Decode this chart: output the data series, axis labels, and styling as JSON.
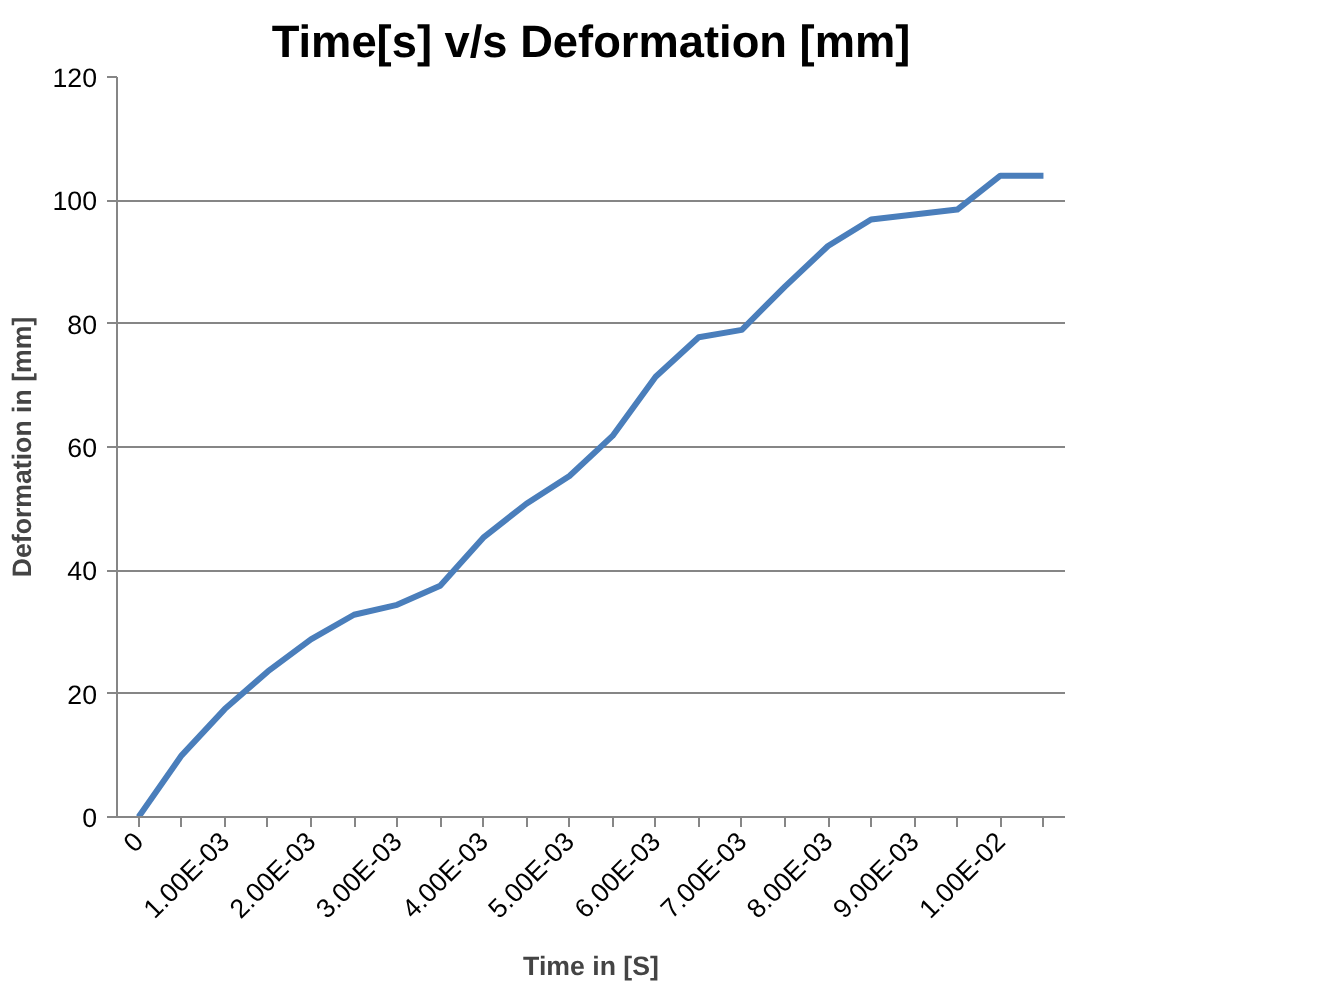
{
  "chart_data": {
    "type": "line",
    "title": "Time[s] v/s Deformation [mm]",
    "xlabel": "Time in [S]",
    "ylabel": "Deformation in [mm]",
    "categories": [
      "0",
      null,
      "1.00E-03",
      null,
      "2.00E-03",
      null,
      "3.00E-03",
      null,
      "4.00E-03",
      null,
      "5.00E-03",
      null,
      "6.00E-03",
      null,
      "7.00E-03",
      null,
      "8.00E-03",
      null,
      "9.00E-03",
      null,
      "1.00E-02",
      null
    ],
    "series": [
      {
        "color": "#4a7ebb",
        "values": [
          0,
          10,
          17.5,
          23.6,
          28.8,
          32.8,
          34.4,
          37.5,
          45.3,
          50.8,
          55.3,
          61.8,
          71.4,
          77.8,
          79,
          86,
          92.6,
          96.9,
          97.7,
          98.5,
          104,
          104
        ]
      }
    ],
    "ylim": [
      0,
      120
    ],
    "yticks": [
      0,
      20,
      40,
      60,
      80,
      100,
      120
    ],
    "grid": "y",
    "marker": "none",
    "line_style": "solid"
  }
}
